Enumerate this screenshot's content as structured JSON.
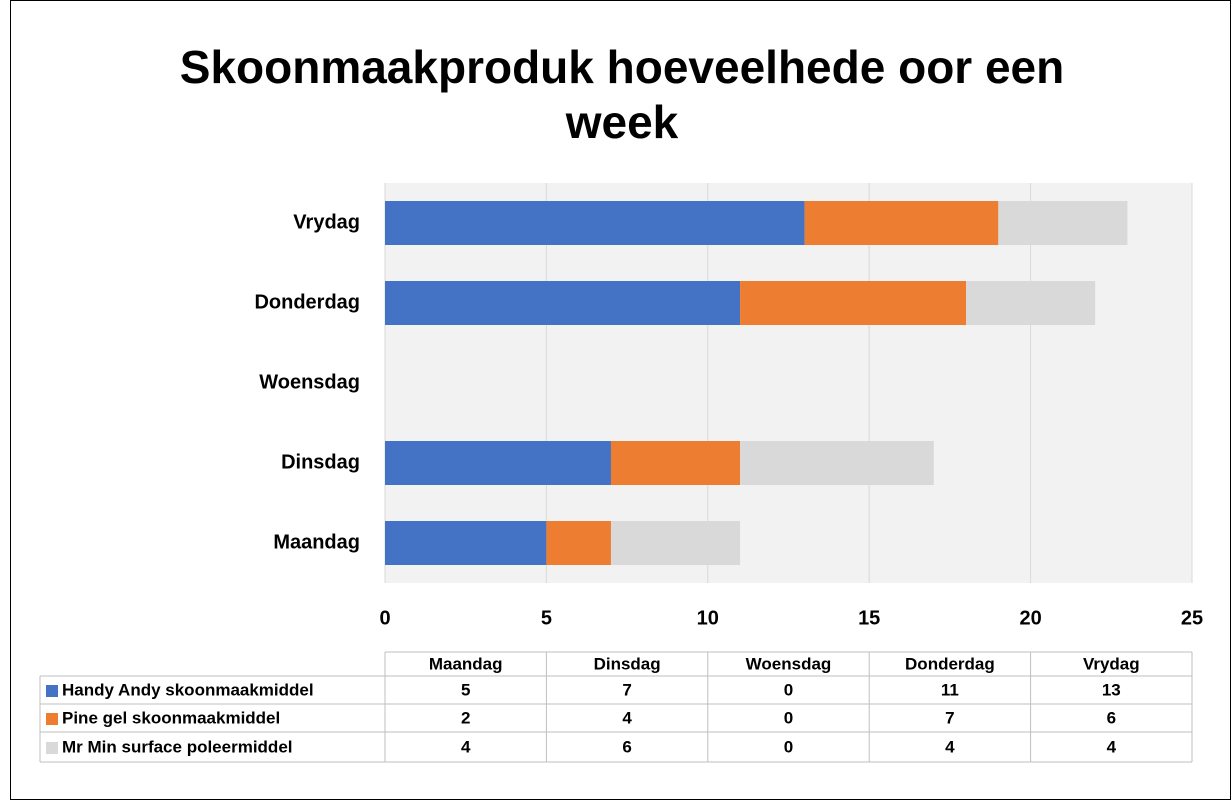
{
  "chart_data": {
    "type": "stacked_barh",
    "title": "Skoonmaakproduk hoeveelhede oor een week",
    "categories": [
      "Maandag",
      "Dinsdag",
      "Woensdag",
      "Donderdag",
      "Vrydag"
    ],
    "series": [
      {
        "name": "Handy Andy skoonmaakmiddel",
        "color": "#4472c4",
        "values": [
          5,
          7,
          0,
          11,
          13
        ]
      },
      {
        "name": "Pine gel skoonmaakmiddel",
        "color": "#ed7d31",
        "values": [
          2,
          4,
          0,
          7,
          6
        ]
      },
      {
        "name": "Mr Min surface poleermiddel",
        "color": "#d9d9d9",
        "values": [
          4,
          6,
          0,
          4,
          4
        ]
      }
    ],
    "xlim": [
      0,
      25
    ],
    "xticks": [
      0,
      5,
      10,
      15,
      20,
      25
    ],
    "grid": true,
    "data_table": true
  }
}
